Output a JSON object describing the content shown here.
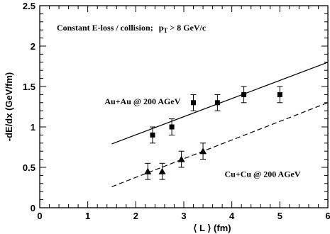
{
  "chart_data": {
    "type": "scatter",
    "title": "",
    "xlabel": "⟨ L ⟩ (fm)",
    "ylabel": "-dE/dx (GeV/fm)",
    "xlim": [
      0,
      6
    ],
    "ylim": [
      0,
      2.5
    ],
    "x_ticks": [
      "0",
      "1",
      "2",
      "3",
      "4",
      "5",
      "6"
    ],
    "y_ticks": [
      "0",
      "0.5",
      "1",
      "1.5",
      "2",
      "2.5"
    ],
    "grid": false,
    "annotation": {
      "main": "Constant E-loss / collision;",
      "condition_prefix": "p",
      "condition_sub": "T",
      "condition_suffix": " > 8 GeV/c"
    },
    "series": [
      {
        "name": "Au+Au @ 200 AGeV",
        "marker": "square",
        "points": [
          {
            "x": 2.35,
            "y": 0.9,
            "err": 0.1
          },
          {
            "x": 2.75,
            "y": 1.0,
            "err": 0.1
          },
          {
            "x": 3.2,
            "y": 1.3,
            "err": 0.1
          },
          {
            "x": 3.7,
            "y": 1.3,
            "err": 0.1
          },
          {
            "x": 4.25,
            "y": 1.4,
            "err": 0.1
          },
          {
            "x": 5.0,
            "y": 1.4,
            "err": 0.1
          }
        ],
        "fit": {
          "style": "solid",
          "x": [
            1.5,
            6.0
          ],
          "y": [
            0.79,
            1.8
          ]
        }
      },
      {
        "name": "Cu+Cu @ 200 AGeV",
        "marker": "triangle",
        "points": [
          {
            "x": 2.25,
            "y": 0.45,
            "err": 0.1
          },
          {
            "x": 2.55,
            "y": 0.45,
            "err": 0.1
          },
          {
            "x": 2.95,
            "y": 0.6,
            "err": 0.1
          },
          {
            "x": 3.4,
            "y": 0.7,
            "err": 0.1
          }
        ],
        "fit": {
          "style": "dashed",
          "x": [
            1.5,
            6.0
          ],
          "y": [
            0.26,
            1.3
          ]
        }
      }
    ],
    "series_labels": {
      "au": {
        "at_x": 1.35,
        "at_y": 1.28
      },
      "cu": {
        "at_x": 3.85,
        "at_y": 0.38
      }
    }
  }
}
